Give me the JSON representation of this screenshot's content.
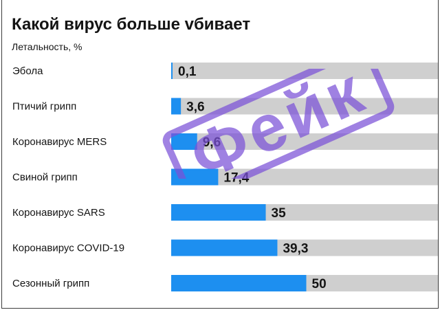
{
  "title": "Какой вирус больше vбивает",
  "subtitle": "Летальность, %",
  "stamp_text": "Фейк",
  "colors": {
    "bar": "#1d8ff0",
    "track": "#cfcfcf",
    "label": "#141414",
    "stamp": "#7b52d8"
  },
  "chart_data": {
    "type": "bar",
    "orientation": "horizontal",
    "title": "Какой вирус больше vбивает",
    "subtitle": "Летальность, %",
    "xlim": [
      0,
      100
    ],
    "grid": false,
    "categories": [
      "Эбола",
      "Птичий грипп",
      "Коронавирус MERS",
      "Свиной грипп",
      "Коронавирус SARS",
      "Коронавирус COVID-19",
      "Сезонный грипп"
    ],
    "values": [
      0.1,
      3.6,
      9.6,
      17.4,
      35,
      39.3,
      50
    ],
    "data_labels": [
      "0,1",
      "3,6",
      "9,6",
      "17,4",
      "35",
      "39,3",
      "50"
    ]
  }
}
